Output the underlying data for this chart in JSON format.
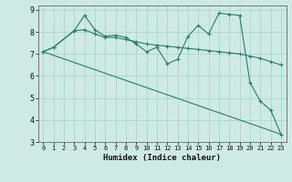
{
  "xlabel": "Humidex (Indice chaleur)",
  "bg_color": "#ceeae4",
  "grid_color": "#aed4ce",
  "line_color": "#2a7a6e",
  "xlim": [
    -0.5,
    23.5
  ],
  "ylim": [
    3,
    9.2
  ],
  "xticks": [
    0,
    1,
    2,
    3,
    4,
    5,
    6,
    7,
    8,
    9,
    10,
    11,
    12,
    13,
    14,
    15,
    16,
    17,
    18,
    19,
    20,
    21,
    22,
    23
  ],
  "yticks": [
    3,
    4,
    5,
    6,
    7,
    8,
    9
  ],
  "line1_x": [
    0,
    1,
    3,
    4,
    5,
    6,
    7,
    8,
    9,
    10,
    11,
    12,
    13,
    14,
    15,
    16,
    17,
    18,
    19,
    20,
    21,
    22,
    23
  ],
  "line1_y": [
    7.1,
    7.3,
    8.05,
    8.75,
    8.1,
    7.8,
    7.85,
    7.75,
    7.45,
    7.1,
    7.3,
    6.55,
    6.75,
    7.8,
    8.3,
    7.9,
    8.85,
    8.8,
    8.75,
    5.7,
    4.85,
    4.45,
    3.35
  ],
  "line2_x": [
    0,
    1,
    3,
    4,
    5,
    6,
    7,
    8,
    9,
    10,
    11,
    12,
    13,
    14,
    15,
    16,
    17,
    18,
    19,
    20,
    21,
    22,
    23
  ],
  "line2_y": [
    7.1,
    7.3,
    8.05,
    8.1,
    7.9,
    7.75,
    7.75,
    7.65,
    7.55,
    7.45,
    7.4,
    7.35,
    7.3,
    7.25,
    7.2,
    7.15,
    7.1,
    7.05,
    7.0,
    6.9,
    6.8,
    6.65,
    6.5
  ],
  "line3_x": [
    0,
    23
  ],
  "line3_y": [
    7.1,
    3.35
  ]
}
